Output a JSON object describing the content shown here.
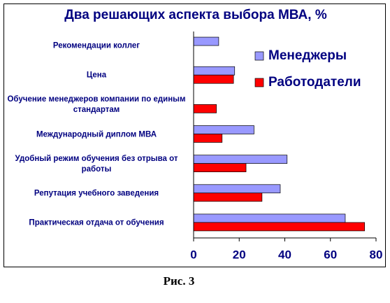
{
  "chart_data": {
    "type": "barh",
    "title": "Два решающих аспекта выбора МВА, %",
    "categories": [
      "Рекомендации коллег",
      "Цена",
      "Обучение менеджеров компании по единым стандартам",
      "Международный диплом МВА",
      "Удобный режим обучения без отрыва от работы",
      "Репутация учебного заведения",
      "Практическая отдача от обучения"
    ],
    "series": [
      {
        "name": "Менеджеры",
        "color": "#9999ff",
        "values": [
          11,
          18,
          null,
          26.5,
          41,
          38,
          66.5
        ]
      },
      {
        "name": "Работодатели",
        "color": "#ff0000",
        "values": [
          null,
          17.5,
          10,
          12.5,
          23,
          30,
          75
        ]
      }
    ],
    "xlim": [
      0,
      80
    ],
    "xticks": [
      0,
      20,
      40,
      60,
      80
    ],
    "grid": false,
    "legend": "top-right"
  },
  "caption": "Рис. 3"
}
